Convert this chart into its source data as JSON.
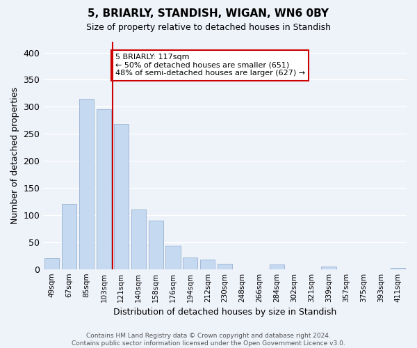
{
  "title": "5, BRIARLY, STANDISH, WIGAN, WN6 0BY",
  "subtitle": "Size of property relative to detached houses in Standish",
  "xlabel": "Distribution of detached houses by size in Standish",
  "ylabel": "Number of detached properties",
  "bar_labels": [
    "49sqm",
    "67sqm",
    "85sqm",
    "103sqm",
    "121sqm",
    "140sqm",
    "158sqm",
    "176sqm",
    "194sqm",
    "212sqm",
    "230sqm",
    "248sqm",
    "266sqm",
    "284sqm",
    "302sqm",
    "321sqm",
    "339sqm",
    "357sqm",
    "375sqm",
    "393sqm",
    "411sqm"
  ],
  "bar_values": [
    20,
    120,
    315,
    295,
    268,
    110,
    90,
    43,
    22,
    18,
    10,
    0,
    0,
    8,
    0,
    0,
    5,
    0,
    0,
    0,
    2
  ],
  "bar_color": "#c5d9f0",
  "bar_edge_color": "#a0b8d8",
  "vline_x": 3.5,
  "vline_color": "#cc0000",
  "annotation_text": "5 BRIARLY: 117sqm\n← 50% of detached houses are smaller (651)\n48% of semi-detached houses are larger (627) →",
  "annotation_box_color": "white",
  "annotation_box_edge": "#cc0000",
  "ylim": [
    0,
    420
  ],
  "yticks": [
    0,
    50,
    100,
    150,
    200,
    250,
    300,
    350,
    400
  ],
  "footer": "Contains HM Land Registry data © Crown copyright and database right 2024.\nContains public sector information licensed under the Open Government Licence v3.0.",
  "background_color": "#eef2f9",
  "grid_color": "white"
}
